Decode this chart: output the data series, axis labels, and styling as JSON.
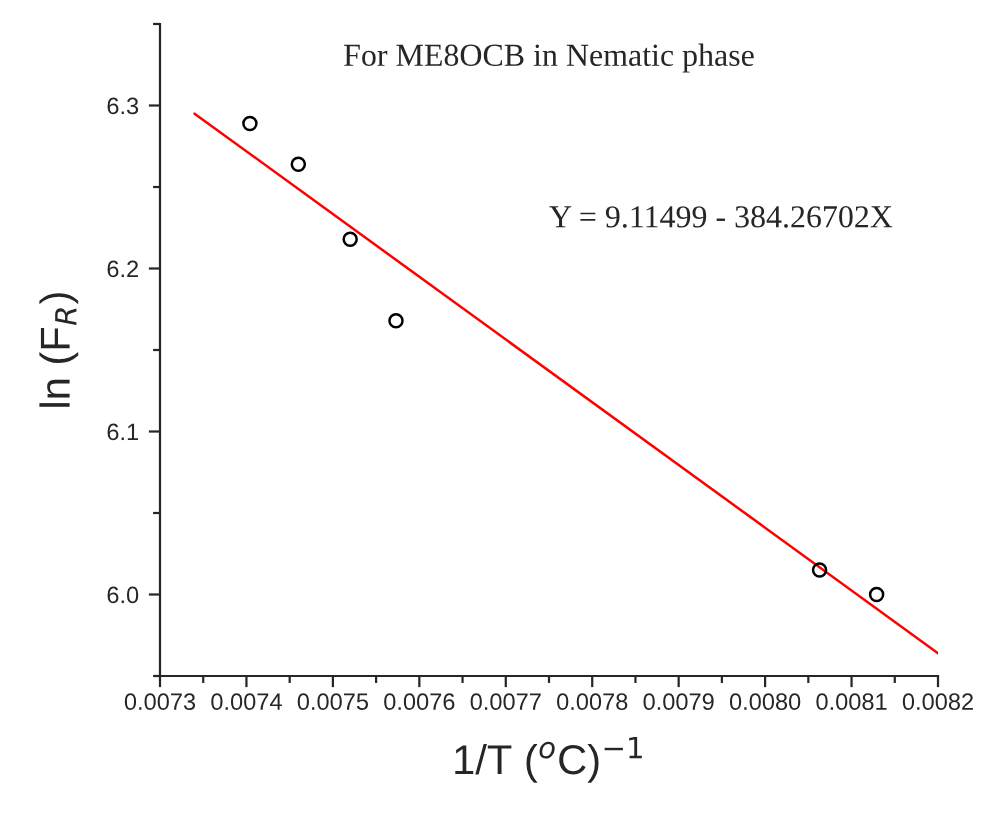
{
  "chart_data": {
    "type": "scatter",
    "title": "For ME8OCB in Nematic phase",
    "xlabel": "1/T ($^{o}$C)$^{−1}$",
    "ylabel": "ln (F$_{R}$)",
    "annotations": [
      "Y = 9.11499 - 384.26702X"
    ],
    "series": [
      {
        "color": "#000000",
        "marker": "circle",
        "x": [
          0.007404,
          0.00746,
          0.00752,
          0.007573,
          0.008063,
          0.008129
        ],
        "values": [
          6.289,
          6.264,
          6.218,
          6.168,
          6.015,
          6.0
        ]
      },
      {
        "type": "line",
        "color": "#ff0000",
        "marker": "none",
        "line_style": "solid",
        "x": [
          0.00734,
          0.0082
        ],
        "values": [
          6.295,
          5.964
        ]
      }
    ],
    "xlim": [
      0.0073,
      0.0082
    ],
    "ylim": [
      5.95,
      6.35
    ],
    "xticks": [
      {
        "value": 0.0073,
        "label": "0.0073"
      },
      {
        "value": 0.0074,
        "label": "0.0074"
      },
      {
        "value": 0.0075,
        "label": "0.0075"
      },
      {
        "value": 0.0076,
        "label": "0.0076"
      },
      {
        "value": 0.0077,
        "label": "0.0077"
      },
      {
        "value": 0.0078,
        "label": "0.0078"
      },
      {
        "value": 0.0079,
        "label": "0.0079"
      },
      {
        "value": 0.008,
        "label": "0.0080"
      },
      {
        "value": 0.0081,
        "label": "0.0081"
      },
      {
        "value": 0.0082,
        "label": "0.0082"
      }
    ],
    "yticks": [
      {
        "value": 6.0,
        "label": "6.0"
      },
      {
        "value": 6.1,
        "label": "6.1"
      },
      {
        "value": 6.2,
        "label": "6.2"
      },
      {
        "value": 6.3,
        "label": "6.3"
      }
    ],
    "grid": false,
    "legend": false
  }
}
